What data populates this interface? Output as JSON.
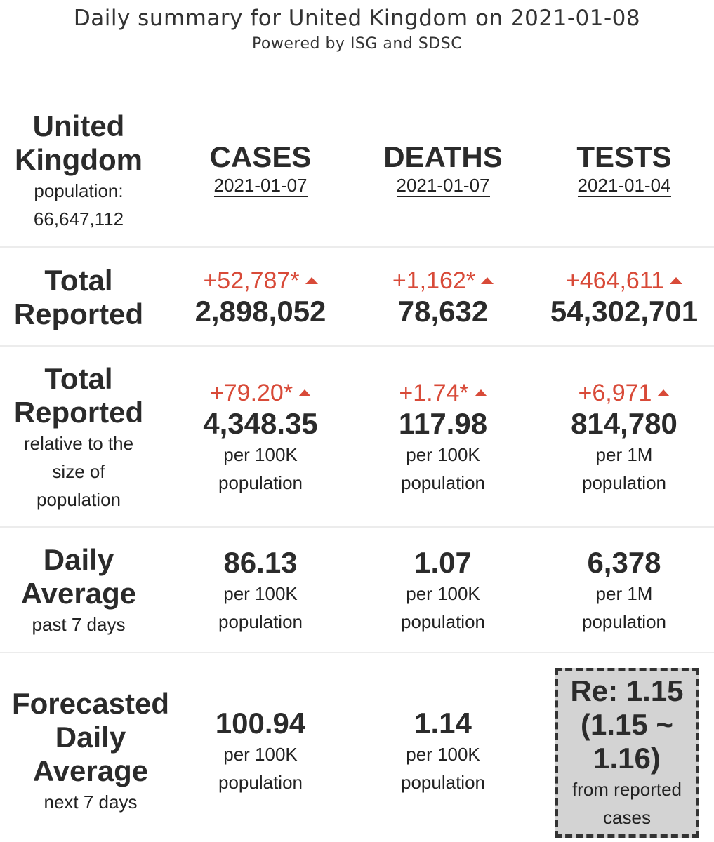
{
  "header": {
    "title": "Daily summary for United Kingdom on 2021-01-08",
    "subtitle": "Powered by ISG and SDSC"
  },
  "region": {
    "name_line1": "United",
    "name_line2": "Kingdom",
    "population_label": "population:",
    "population_value": "66,647,112"
  },
  "columns": [
    {
      "name": "CASES",
      "date": "2021-01-07"
    },
    {
      "name": "DEATHS",
      "date": "2021-01-07"
    },
    {
      "name": "TESTS",
      "date": "2021-01-04"
    }
  ],
  "total_reported": {
    "label_line1": "Total",
    "label_line2": "Reported",
    "cases": {
      "delta": "+52,787*",
      "value": "2,898,052"
    },
    "deaths": {
      "delta": "+1,162*",
      "value": "78,632"
    },
    "tests": {
      "delta": "+464,611",
      "value": "54,302,701"
    }
  },
  "relative": {
    "label_line1": "Total",
    "label_line2": "Reported",
    "sub_line1": "relative to the",
    "sub_line2": "size of",
    "sub_line3": "population",
    "cases": {
      "delta": "+79.20*",
      "value": "4,348.35",
      "unit1": "per 100K",
      "unit2": "population"
    },
    "deaths": {
      "delta": "+1.74*",
      "value": "117.98",
      "unit1": "per 100K",
      "unit2": "population"
    },
    "tests": {
      "delta": "+6,971",
      "value": "814,780",
      "unit1": "per 1M",
      "unit2": "population"
    }
  },
  "daily_average": {
    "label_line1": "Daily",
    "label_line2": "Average",
    "sub": "past 7 days",
    "cases": {
      "value": "86.13",
      "unit1": "per 100K",
      "unit2": "population"
    },
    "deaths": {
      "value": "1.07",
      "unit1": "per 100K",
      "unit2": "population"
    },
    "tests": {
      "value": "6,378",
      "unit1": "per 1M",
      "unit2": "population"
    }
  },
  "forecast": {
    "label_line1": "Forecasted",
    "label_line2": "Daily",
    "label_line3": "Average",
    "sub": "next 7 days",
    "cases": {
      "value": "100.94",
      "unit1": "per 100K",
      "unit2": "population"
    },
    "deaths": {
      "value": "1.14",
      "unit1": "per 100K",
      "unit2": "population"
    },
    "re": {
      "line1": "Re: 1.15",
      "line2": "(1.15 ~",
      "line3": "1.16)",
      "sub1": "from reported",
      "sub2": "cases"
    }
  }
}
